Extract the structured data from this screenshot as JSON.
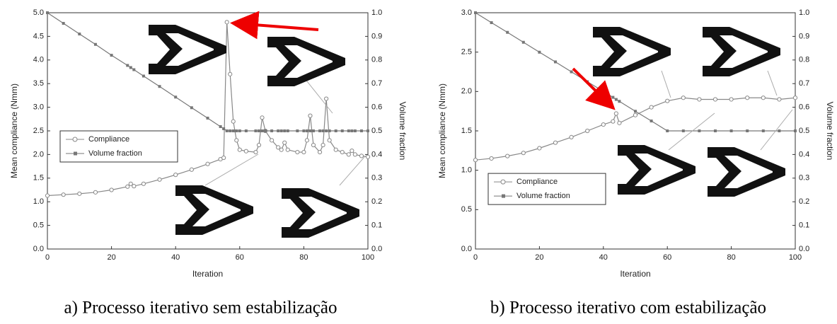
{
  "chart_data": [
    {
      "type": "line",
      "caption": "a) Processo iterativo sem estabilização",
      "x_label": "Iteration",
      "y_label": "Mean compliance (Nmm)",
      "y2_label": "Volume fraction",
      "xlim": [
        0,
        100
      ],
      "xticks": [
        0,
        20,
        40,
        60,
        80,
        100
      ],
      "ylim": [
        0,
        5
      ],
      "yticks": [
        {
          "value": 0,
          "label": "0.0"
        },
        0.5,
        {
          "value": 1,
          "label": "1.0"
        },
        1.5,
        {
          "value": 2,
          "label": "2.0"
        },
        2.5,
        {
          "value": 3,
          "label": "3.0"
        },
        3.5,
        {
          "value": 4,
          "label": "4.0"
        },
        4.5,
        {
          "value": 5,
          "label": "5.0"
        }
      ],
      "y2lim": [
        0,
        1
      ],
      "y2ticks": [
        {
          "value": 0,
          "label": "0.0"
        },
        0.1,
        0.2,
        0.3,
        0.4,
        0.5,
        0.6,
        0.7,
        0.8,
        0.9,
        {
          "value": 1,
          "label": "1.0"
        }
      ],
      "legend": "center left",
      "x": [
        0,
        5,
        10,
        15,
        20,
        25,
        26,
        27,
        30,
        35,
        40,
        45,
        50,
        54,
        55,
        56,
        57,
        58,
        59,
        60,
        62,
        65,
        66,
        67,
        68,
        70,
        72,
        73,
        74,
        75,
        78,
        80,
        81,
        82,
        83,
        85,
        86,
        87,
        88,
        90,
        92,
        94,
        95,
        96,
        98,
        100
      ],
      "series": [
        {
          "name": "Compliance",
          "color": "#888888",
          "marker": "circle",
          "values": [
            1.13,
            1.15,
            1.17,
            1.2,
            1.25,
            1.32,
            1.38,
            1.33,
            1.38,
            1.47,
            1.57,
            1.68,
            1.8,
            1.9,
            1.93,
            4.8,
            3.7,
            2.7,
            2.3,
            2.1,
            2.07,
            2.05,
            2.2,
            2.78,
            2.5,
            2.3,
            2.15,
            2.1,
            2.25,
            2.1,
            2.05,
            2.05,
            2.3,
            2.82,
            2.2,
            2.05,
            2.2,
            3.18,
            2.3,
            2.1,
            2.05,
            2.0,
            2.08,
            2.0,
            1.97,
            1.95
          ]
        },
        {
          "name": "Volume fraction",
          "color": "#777777",
          "marker": "square",
          "axis": "y2",
          "values": [
            1.0,
            0.955,
            0.91,
            0.866,
            0.82,
            0.777,
            0.768,
            0.759,
            0.732,
            0.688,
            0.643,
            0.598,
            0.554,
            0.518,
            0.509,
            0.5,
            0.5,
            0.5,
            0.5,
            0.5,
            0.5,
            0.5,
            0.5,
            0.5,
            0.5,
            0.5,
            0.5,
            0.5,
            0.5,
            0.5,
            0.5,
            0.5,
            0.5,
            0.5,
            0.5,
            0.5,
            0.5,
            0.5,
            0.5,
            0.5,
            0.5,
            0.5,
            0.5,
            0.5,
            0.5,
            0.5
          ]
        }
      ]
    },
    {
      "type": "line",
      "caption": "b) Processo iterativo com estabilização",
      "x_label": "Iteration",
      "y_label": "Mean compliance (Nmm)",
      "y2_label": "Volume fraction",
      "xlim": [
        0,
        100
      ],
      "xticks": [
        0,
        20,
        40,
        60,
        80,
        100
      ],
      "ylim": [
        0,
        3
      ],
      "yticks": [
        {
          "value": 0,
          "label": "0.0"
        },
        0.5,
        {
          "value": 1,
          "label": "1.0"
        },
        1.5,
        {
          "value": 2,
          "label": "2.0"
        },
        2.5,
        {
          "value": 3,
          "label": "3.0"
        }
      ],
      "y2lim": [
        0,
        1
      ],
      "y2ticks": [
        {
          "value": 0,
          "label": "0.0"
        },
        0.1,
        0.2,
        0.3,
        0.4,
        0.5,
        0.6,
        0.7,
        0.8,
        0.9,
        {
          "value": 1,
          "label": "1.0"
        }
      ],
      "legend": "lower left",
      "x": [
        0,
        5,
        10,
        15,
        20,
        25,
        30,
        35,
        40,
        43,
        44,
        45,
        50,
        55,
        60,
        65,
        70,
        75,
        80,
        85,
        90,
        95,
        100
      ],
      "series": [
        {
          "name": "Compliance",
          "color": "#888888",
          "marker": "circle",
          "values": [
            1.13,
            1.15,
            1.18,
            1.22,
            1.28,
            1.35,
            1.42,
            1.5,
            1.58,
            1.62,
            1.72,
            1.6,
            1.7,
            1.8,
            1.88,
            1.92,
            1.9,
            1.9,
            1.9,
            1.92,
            1.92,
            1.9,
            1.92
          ]
        },
        {
          "name": "Volume fraction",
          "color": "#777777",
          "marker": "square",
          "axis": "y2",
          "values": [
            1.0,
            0.958,
            0.917,
            0.875,
            0.833,
            0.792,
            0.75,
            0.708,
            0.667,
            0.642,
            0.633,
            0.625,
            0.583,
            0.542,
            0.5,
            0.5,
            0.5,
            0.5,
            0.5,
            0.5,
            0.5,
            0.5,
            0.5
          ]
        }
      ]
    }
  ]
}
